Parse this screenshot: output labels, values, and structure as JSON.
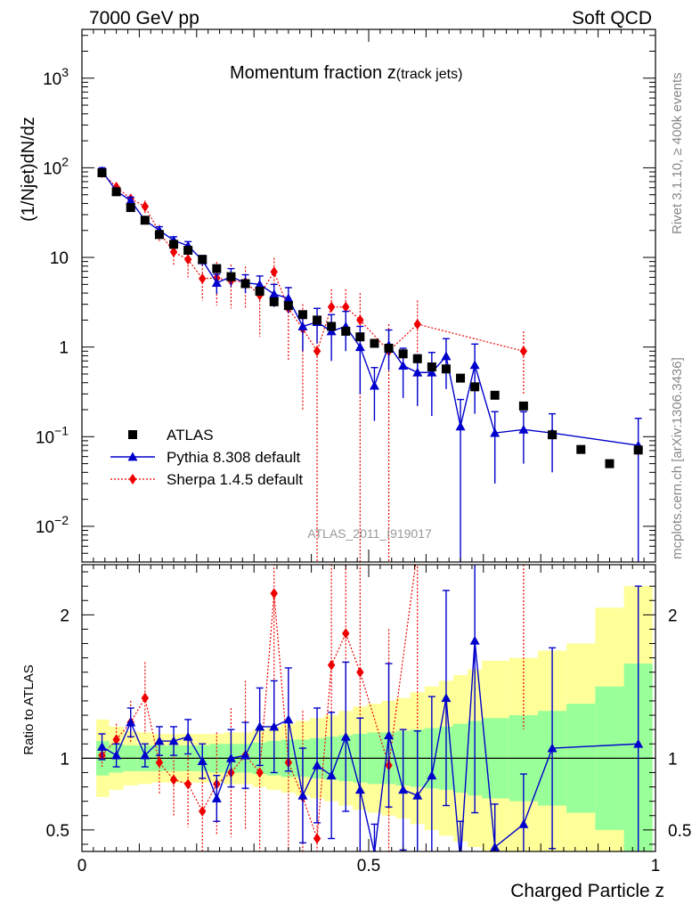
{
  "header": {
    "left": "7000 GeV pp",
    "right": "Soft QCD",
    "side_top": "Rivet 3.1.10, ≥ 400k events",
    "side_bottom": "mcplots.cern.ch [arXiv:1306.3436]",
    "analysis_id": "ATLAS_2011_I919017"
  },
  "chart_data": {
    "type": "scatter",
    "title_main": "Momentum fraction z",
    "title_sub": "(track jets)",
    "xlabel": "Charged Particle z",
    "ylabel": "(1/Njet)dN/dz",
    "ratio_ylabel": "Ratio to ATLAS",
    "xlim": [
      0,
      1
    ],
    "ylim": [
      0.004,
      3500
    ],
    "ratio_ylim": [
      0.35,
      2.35
    ],
    "y_scale": "log",
    "x_ticks": [
      {
        "v": 0,
        "label": "0"
      },
      {
        "v": 0.5,
        "label": "0.5"
      },
      {
        "v": 1,
        "label": "1"
      }
    ],
    "y_ticks": [
      {
        "v": 1000,
        "base": "10",
        "exp": "3"
      },
      {
        "v": 100,
        "base": "10",
        "exp": "2"
      },
      {
        "v": 10,
        "base": "10",
        "exp": ""
      },
      {
        "v": 1,
        "base": "1",
        "exp": ""
      },
      {
        "v": 0.1,
        "base": "10",
        "exp": "−1"
      },
      {
        "v": 0.01,
        "base": "10",
        "exp": "−2"
      }
    ],
    "ratio_ticks": [
      {
        "v": 0.5,
        "label": "0.5"
      },
      {
        "v": 1,
        "label": "1"
      },
      {
        "v": 2,
        "label": "2"
      }
    ],
    "legend": [
      {
        "label": "ATLAS",
        "style": "data"
      },
      {
        "label": "Pythia 8.308 default",
        "style": "pythia"
      },
      {
        "label": "Sherpa 1.4.5 default",
        "style": "sherpa"
      }
    ],
    "colors": {
      "data": "#000000",
      "pythia": "#0000cc",
      "sherpa": "#ee0000",
      "band_outer": "#ffff99",
      "band_inner": "#99ff99"
    },
    "series": [
      {
        "name": "ATLAS",
        "x": [
          0.035,
          0.06,
          0.085,
          0.11,
          0.135,
          0.16,
          0.185,
          0.21,
          0.235,
          0.26,
          0.285,
          0.31,
          0.335,
          0.36,
          0.385,
          0.41,
          0.435,
          0.46,
          0.485,
          0.51,
          0.535,
          0.56,
          0.585,
          0.61,
          0.635,
          0.66,
          0.685,
          0.72,
          0.77,
          0.82,
          0.87,
          0.92,
          0.97
        ],
        "y": [
          88,
          54,
          36,
          26,
          18,
          14,
          12,
          9.5,
          7.5,
          6.1,
          5.1,
          4.2,
          3.2,
          2.9,
          2.3,
          2.0,
          1.7,
          1.5,
          1.3,
          1.1,
          0.97,
          0.84,
          0.74,
          0.6,
          0.57,
          0.45,
          0.36,
          0.29,
          0.22,
          0.105,
          0.072,
          0.05,
          0.071
        ]
      },
      {
        "name": "Pythia 8.308 default",
        "x": [
          0.035,
          0.06,
          0.085,
          0.11,
          0.135,
          0.16,
          0.185,
          0.21,
          0.235,
          0.26,
          0.285,
          0.31,
          0.335,
          0.36,
          0.385,
          0.41,
          0.435,
          0.46,
          0.485,
          0.51,
          0.535,
          0.56,
          0.585,
          0.61,
          0.635,
          0.66,
          0.685,
          0.72,
          0.77,
          0.82,
          0.97
        ],
        "y": [
          92,
          55,
          43,
          26,
          20,
          15.5,
          13.5,
          9.3,
          5.2,
          6.1,
          5.2,
          5.0,
          3.9,
          3.5,
          1.7,
          1.9,
          1.5,
          1.7,
          1.0,
          0.37,
          1.05,
          0.62,
          0.52,
          0.52,
          0.79,
          0.13,
          0.63,
          0.11,
          0.12,
          0.11,
          0.08
        ],
        "err": [
          8,
          4,
          4,
          2,
          2,
          1.5,
          1.5,
          1.2,
          1.3,
          1.4,
          1.2,
          1.2,
          1.1,
          1.1,
          0.8,
          0.8,
          0.8,
          0.8,
          0.7,
          0.22,
          0.5,
          0.35,
          0.3,
          0.35,
          0.45,
          0.13,
          0.45,
          0.08,
          0.07,
          0.07,
          0.08
        ]
      },
      {
        "name": "Sherpa 1.4.5 default",
        "x": [
          0.035,
          0.06,
          0.085,
          0.11,
          0.135,
          0.16,
          0.185,
          0.21,
          0.235,
          0.26,
          0.285,
          0.31,
          0.335,
          0.36,
          0.385,
          0.41,
          0.435,
          0.46,
          0.485,
          0.535,
          0.585,
          0.77
        ],
        "y": [
          88,
          61,
          45,
          37,
          19,
          11.5,
          9.5,
          5.8,
          5.9,
          5.5,
          5.3,
          3.8,
          6.9,
          2.7,
          1.6,
          0.9,
          2.8,
          2.8,
          2.0,
          0.9,
          1.8,
          0.9
        ],
        "err": [
          7,
          7,
          6,
          6,
          4,
          3.5,
          3.5,
          2.5,
          3,
          2.8,
          2.6,
          2.5,
          3,
          2,
          1.4,
          0.9,
          1.6,
          1.6,
          2.0,
          0.9,
          1.5,
          0.6
        ]
      }
    ],
    "ratio_pythia": [
      1.08,
      1.02,
      1.25,
      1.02,
      1.12,
      1.12,
      1.15,
      0.98,
      0.72,
      1.0,
      1.02,
      1.22,
      1.22,
      1.27,
      0.74,
      0.95,
      0.88,
      1.15,
      0.78,
      0.34,
      1.16,
      0.78,
      0.74,
      0.88,
      1.42,
      0.28,
      1.82,
      0.38,
      0.54,
      1.07,
      1.1
    ],
    "ratio_pythia_err": [
      0.09,
      0.08,
      0.1,
      0.08,
      0.1,
      0.1,
      0.12,
      0.12,
      0.16,
      0.2,
      0.23,
      0.27,
      0.32,
      0.36,
      0.33,
      0.4,
      0.44,
      0.52,
      0.5,
      0.2,
      0.5,
      0.42,
      0.45,
      0.55,
      0.75,
      0.28,
      1.2,
      0.3,
      0.35,
      0.7,
      1.1
    ],
    "ratio_sherpa": [
      1.02,
      1.13,
      1.25,
      1.42,
      0.97,
      0.85,
      0.82,
      0.63,
      0.82,
      0.9,
      1.02,
      0.9,
      2.15,
      0.97,
      0.73,
      0.44,
      1.65,
      1.87,
      1.6,
      0.95,
      2.45,
      3.8
    ],
    "ratio_sherpa_err": [
      0.08,
      0.11,
      0.15,
      0.25,
      0.22,
      0.26,
      0.3,
      0.28,
      0.36,
      0.45,
      0.52,
      0.55,
      0.95,
      0.65,
      0.6,
      0.44,
      0.95,
      1.0,
      1.6,
      0.95,
      2.0,
      2.6
    ],
    "band_edges": [
      0.025,
      0.0475,
      0.0725,
      0.0975,
      0.1225,
      0.1475,
      0.1725,
      0.1975,
      0.2225,
      0.2475,
      0.2725,
      0.2975,
      0.3225,
      0.3475,
      0.3725,
      0.3975,
      0.4225,
      0.4475,
      0.4725,
      0.4975,
      0.5225,
      0.5475,
      0.5725,
      0.5975,
      0.6225,
      0.6475,
      0.6725,
      0.6975,
      0.745,
      0.795,
      0.845,
      0.895,
      0.945,
      0.995
    ],
    "band_inner": [
      0.12,
      0.1,
      0.09,
      0.09,
      0.09,
      0.09,
      0.09,
      0.09,
      0.1,
      0.1,
      0.1,
      0.11,
      0.12,
      0.13,
      0.13,
      0.14,
      0.15,
      0.16,
      0.17,
      0.18,
      0.18,
      0.19,
      0.2,
      0.21,
      0.22,
      0.24,
      0.26,
      0.28,
      0.3,
      0.33,
      0.38,
      0.5,
      0.66
    ],
    "band_outer": [
      0.27,
      0.22,
      0.19,
      0.18,
      0.17,
      0.17,
      0.17,
      0.17,
      0.17,
      0.18,
      0.18,
      0.2,
      0.22,
      0.24,
      0.26,
      0.28,
      0.3,
      0.33,
      0.36,
      0.38,
      0.4,
      0.42,
      0.46,
      0.5,
      0.54,
      0.58,
      0.62,
      0.68,
      0.7,
      0.75,
      0.8,
      1.05,
      1.2
    ]
  }
}
